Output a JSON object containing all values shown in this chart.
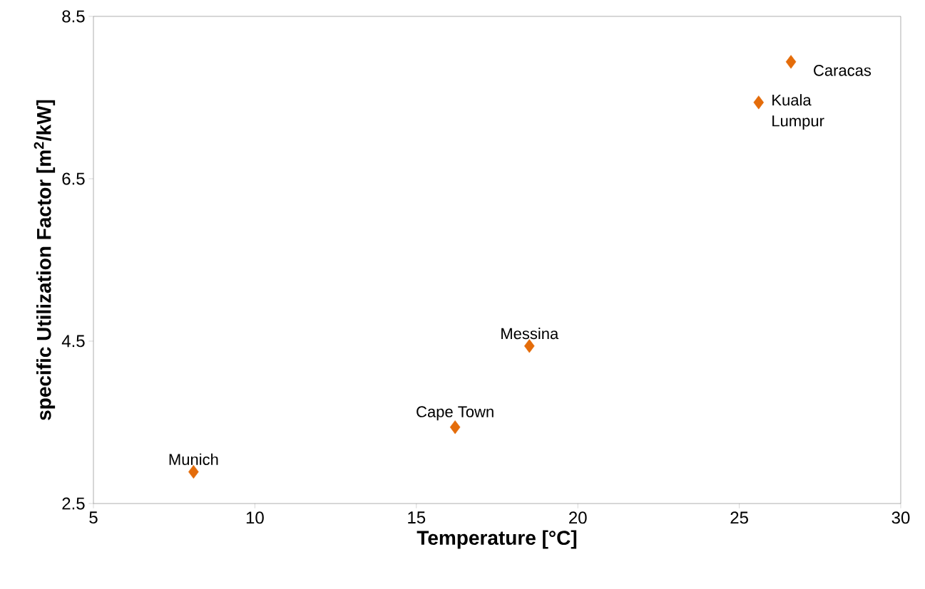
{
  "chart_data": {
    "type": "scatter",
    "xlabel": "Temperature [°C]",
    "ylabel": "specific Utilization Factor [m$^{2}$/kW]",
    "x": [
      8.1,
      16.2,
      18.5,
      25.6,
      26.6
    ],
    "series": [
      {
        "color": "#e46c0a",
        "values": [
          2.89,
          3.44,
          4.44,
          7.44,
          7.94
        ]
      }
    ],
    "xlim": [
      5,
      30
    ],
    "ylim": [
      2.5,
      8.5
    ],
    "xticks": [
      5,
      10,
      15,
      20,
      25,
      30
    ],
    "yticks": [
      2.5,
      4.5,
      6.5,
      8.5
    ],
    "marker": "diamond",
    "grid": false,
    "annotations": [
      {
        "text": "Munich",
        "x": 8.1,
        "y": 2.89
      },
      {
        "text": "Cape Town",
        "x": 16.2,
        "y": 3.44
      },
      {
        "text": "Messina",
        "x": 18.5,
        "y": 4.44
      },
      {
        "text": "Kuala Lumpur",
        "x": 25.6,
        "y": 7.44
      },
      {
        "text": "Caracas",
        "x": 26.6,
        "y": 7.94
      }
    ]
  }
}
